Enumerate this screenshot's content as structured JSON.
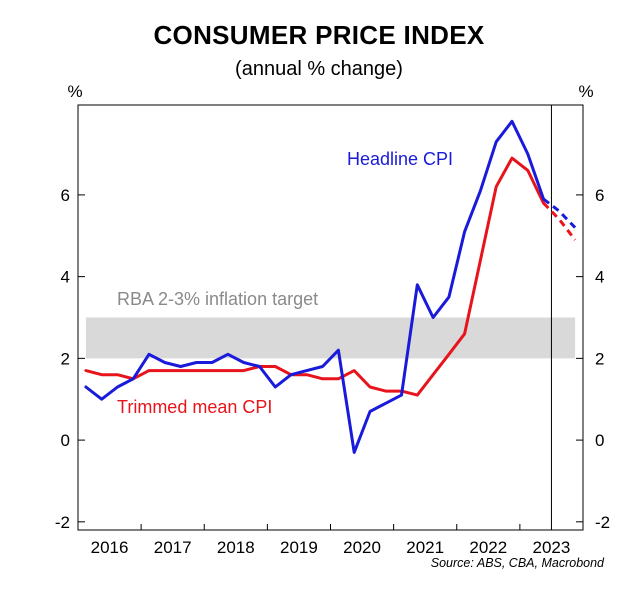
{
  "chart_data": {
    "type": "line",
    "title": "CONSUMER PRICE INDEX",
    "subtitle": "(annual % change)",
    "ylabel_left": "%",
    "ylabel_right": "%",
    "source": "Source: ABS, CBA, Macrobond",
    "ylim": [
      -2.2,
      8.2
    ],
    "yticks": [
      -2,
      0,
      2,
      4,
      6
    ],
    "xlim": [
      2015.5,
      2023.5
    ],
    "xtick_labels": [
      "2016",
      "2017",
      "2018",
      "2019",
      "2020",
      "2021",
      "2022",
      "2023"
    ],
    "grid": false,
    "target_band": {
      "label": "RBA 2-3% inflation target",
      "low": 2,
      "high": 3,
      "color": "#d9d9d9"
    },
    "forecast_start": 2023.0,
    "series": [
      {
        "name": "Headline CPI",
        "color": "#1a1adb",
        "x": [
          2015.625,
          2015.875,
          2016.125,
          2016.375,
          2016.625,
          2016.875,
          2017.125,
          2017.375,
          2017.625,
          2017.875,
          2018.125,
          2018.375,
          2018.625,
          2018.875,
          2019.125,
          2019.375,
          2019.625,
          2019.875,
          2020.125,
          2020.375,
          2020.625,
          2020.875,
          2021.125,
          2021.375,
          2021.625,
          2021.875,
          2022.125,
          2022.375,
          2022.625,
          2022.875
        ],
        "values": [
          1.3,
          1.0,
          1.3,
          1.5,
          2.1,
          1.9,
          1.8,
          1.9,
          1.9,
          2.1,
          1.9,
          1.8,
          1.3,
          1.6,
          1.7,
          1.8,
          2.2,
          -0.3,
          0.7,
          0.9,
          1.1,
          3.8,
          3.0,
          3.5,
          5.1,
          6.1,
          7.3,
          7.8,
          7.0,
          5.9
        ],
        "forecast_x": [
          2022.875,
          2023.125,
          2023.375
        ],
        "forecast_values": [
          5.9,
          5.6,
          5.2
        ]
      },
      {
        "name": "Trimmed mean CPI",
        "color": "#e8141c",
        "x": [
          2015.625,
          2015.875,
          2016.125,
          2016.375,
          2016.625,
          2016.875,
          2017.125,
          2017.375,
          2017.625,
          2017.875,
          2018.125,
          2018.375,
          2018.625,
          2018.875,
          2019.125,
          2019.375,
          2019.625,
          2019.875,
          2020.125,
          2020.375,
          2020.625,
          2020.875,
          2021.125,
          2021.375,
          2021.625,
          2021.875,
          2022.125,
          2022.375,
          2022.625,
          2022.875
        ],
        "values": [
          1.7,
          1.6,
          1.6,
          1.5,
          1.7,
          1.7,
          1.7,
          1.7,
          1.7,
          1.7,
          1.7,
          1.8,
          1.8,
          1.6,
          1.6,
          1.5,
          1.5,
          1.7,
          1.3,
          1.2,
          1.2,
          1.1,
          1.6,
          2.1,
          2.6,
          4.4,
          6.2,
          6.9,
          6.6,
          5.8
        ],
        "forecast_x": [
          2022.875,
          2023.125,
          2023.375
        ],
        "forecast_values": [
          5.8,
          5.4,
          4.9
        ]
      }
    ]
  }
}
